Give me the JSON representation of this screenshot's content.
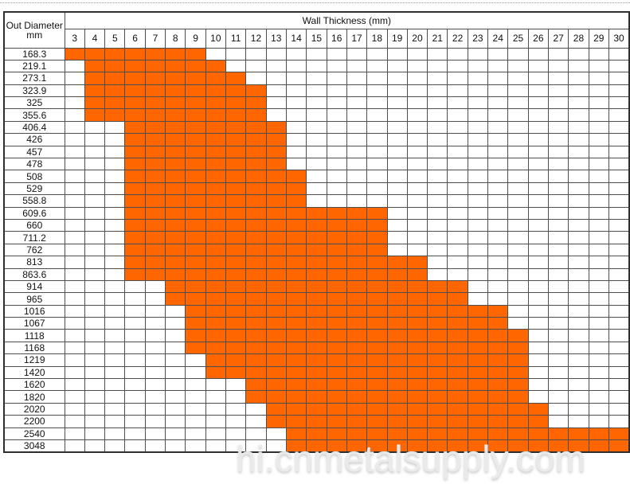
{
  "table": {
    "corner_line1": "Out Diameter",
    "corner_line2": "mm",
    "group_header": "Wall Thickness (mm)"
  },
  "watermark": "hi.cnmetalsupply.com",
  "colors": {
    "filled": "#FF6600",
    "grid_line": "#4e4e4e",
    "outer_border": "#2e2e2e",
    "text": "#111111",
    "watermark": "#ebebeb"
  },
  "chart_data": {
    "type": "heatmap",
    "title": "Wall Thickness (mm)",
    "row_axis_label": "Out Diameter mm",
    "x_categories": [
      3,
      4,
      5,
      6,
      7,
      8,
      9,
      10,
      11,
      12,
      13,
      14,
      15,
      16,
      17,
      18,
      19,
      20,
      21,
      22,
      23,
      24,
      25,
      26,
      27,
      28,
      29,
      30
    ],
    "fill_meaning": "Orange cell = available combination of out diameter and wall thickness",
    "fill_color": "#FF6600",
    "rows": [
      {
        "diameter": "168.3",
        "min_thickness": 3,
        "max_thickness": 9
      },
      {
        "diameter": "219.1",
        "min_thickness": 4,
        "max_thickness": 10
      },
      {
        "diameter": "273.1",
        "min_thickness": 4,
        "max_thickness": 11
      },
      {
        "diameter": "323.9",
        "min_thickness": 4,
        "max_thickness": 12
      },
      {
        "diameter": "325",
        "min_thickness": 4,
        "max_thickness": 12
      },
      {
        "diameter": "355.6",
        "min_thickness": 4,
        "max_thickness": 12
      },
      {
        "diameter": "406.4",
        "min_thickness": 6,
        "max_thickness": 13
      },
      {
        "diameter": "426",
        "min_thickness": 6,
        "max_thickness": 13
      },
      {
        "diameter": "457",
        "min_thickness": 6,
        "max_thickness": 13
      },
      {
        "diameter": "478",
        "min_thickness": 6,
        "max_thickness": 13
      },
      {
        "diameter": "508",
        "min_thickness": 6,
        "max_thickness": 14
      },
      {
        "diameter": "529",
        "min_thickness": 6,
        "max_thickness": 14
      },
      {
        "diameter": "558.8",
        "min_thickness": 6,
        "max_thickness": 14
      },
      {
        "diameter": "609.6",
        "min_thickness": 6,
        "max_thickness": 18
      },
      {
        "diameter": "660",
        "min_thickness": 6,
        "max_thickness": 18
      },
      {
        "diameter": "711.2",
        "min_thickness": 6,
        "max_thickness": 18
      },
      {
        "diameter": "762",
        "min_thickness": 6,
        "max_thickness": 18
      },
      {
        "diameter": "813",
        "min_thickness": 6,
        "max_thickness": 20
      },
      {
        "diameter": "863.6",
        "min_thickness": 6,
        "max_thickness": 20
      },
      {
        "diameter": "914",
        "min_thickness": 8,
        "max_thickness": 22
      },
      {
        "diameter": "965",
        "min_thickness": 8,
        "max_thickness": 22
      },
      {
        "diameter": "1016",
        "min_thickness": 9,
        "max_thickness": 24
      },
      {
        "diameter": "1067",
        "min_thickness": 9,
        "max_thickness": 24
      },
      {
        "diameter": "1118",
        "min_thickness": 9,
        "max_thickness": 25
      },
      {
        "diameter": "1168",
        "min_thickness": 9,
        "max_thickness": 25
      },
      {
        "diameter": "1219",
        "min_thickness": 10,
        "max_thickness": 25
      },
      {
        "diameter": "1420",
        "min_thickness": 10,
        "max_thickness": 25
      },
      {
        "diameter": "1620",
        "min_thickness": 12,
        "max_thickness": 25
      },
      {
        "diameter": "1820",
        "min_thickness": 12,
        "max_thickness": 25
      },
      {
        "diameter": "2020",
        "min_thickness": 13,
        "max_thickness": 26
      },
      {
        "diameter": "2200",
        "min_thickness": 13,
        "max_thickness": 26
      },
      {
        "diameter": "2540",
        "min_thickness": 14,
        "max_thickness": 30
      },
      {
        "diameter": "3048",
        "min_thickness": 14,
        "max_thickness": 30
      }
    ]
  }
}
